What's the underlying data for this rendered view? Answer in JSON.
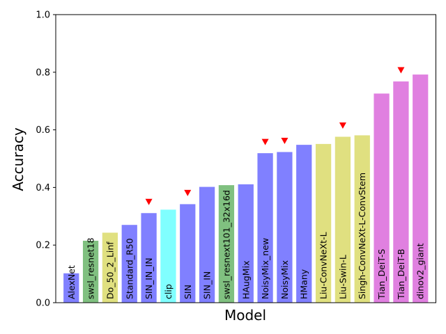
{
  "chart_data": {
    "type": "bar",
    "xlabel": "Model",
    "ylabel": "Accuracy",
    "ylim": [
      0.0,
      1.0
    ],
    "yticks": [
      "0.0",
      "0.2",
      "0.4",
      "0.6",
      "0.8",
      "1.0"
    ],
    "grid": false,
    "legend": "none",
    "categories": [
      "AlexNet",
      "swsl_resnet18",
      "Do_50_2_Linf",
      "Standard_R50",
      "SIN_IN_IN",
      "clip",
      "SIN",
      "SIN_IN",
      "swsl_resnext101_32x16d",
      "HAugMix",
      "NoisyMix_new",
      "NoisyMix",
      "HMany",
      "Liu-ConvNeXt-L",
      "Liu-Swin-L",
      "Singh-ConvNeXt-L-ConvStem",
      "Tian_DeiT-S",
      "Tian_DeiT-B",
      "dinov2_giant"
    ],
    "values": [
      0.102,
      0.215,
      0.243,
      0.27,
      0.311,
      0.323,
      0.342,
      0.402,
      0.408,
      0.411,
      0.519,
      0.523,
      0.548,
      0.551,
      0.576,
      0.581,
      0.726,
      0.768,
      0.792
    ],
    "bar_colors": [
      "#8080ff",
      "#80c080",
      "#e0e080",
      "#8080ff",
      "#8080ff",
      "#80ffff",
      "#8080ff",
      "#8080ff",
      "#80c080",
      "#8080ff",
      "#8080ff",
      "#8080ff",
      "#8080ff",
      "#e0e080",
      "#e0e080",
      "#e0e080",
      "#e080e0",
      "#e080e0",
      "#e080e0"
    ],
    "markers": [
      false,
      false,
      false,
      false,
      true,
      false,
      true,
      false,
      false,
      false,
      true,
      true,
      false,
      false,
      true,
      false,
      false,
      true,
      false
    ],
    "marker_color": "#ff0000",
    "marker_shape": "triangle-down"
  }
}
